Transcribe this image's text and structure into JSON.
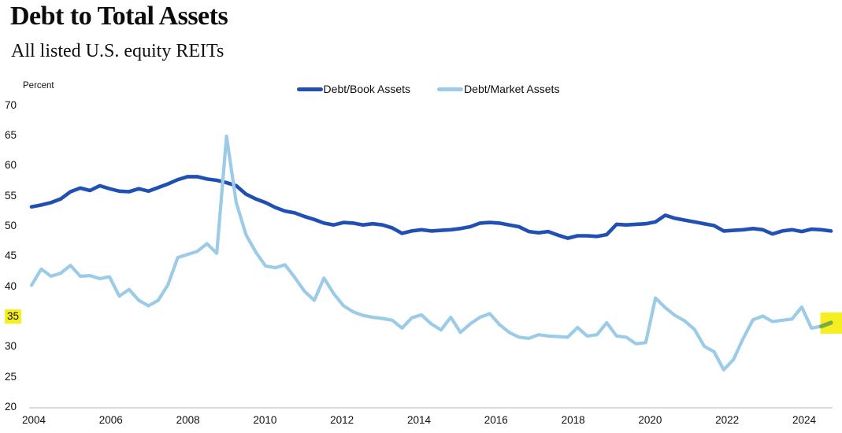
{
  "title": "Debt to Total Assets",
  "subtitle": "All listed U.S. equity REITs",
  "unit_label": "Percent",
  "legend": {
    "items": [
      {
        "label": "Debt/Book Assets",
        "color": "#2150b5"
      },
      {
        "label": "Debt/Market Assets",
        "color": "#9ccbe7"
      }
    ]
  },
  "colors": {
    "book_line": "#2150b5",
    "market_line": "#9ccbe7",
    "highlight_yellow": "#f5ee20",
    "highlight_segment": "#79ad43",
    "axis_baseline": "#c4c4c4",
    "text": "#111111"
  },
  "chart_data": {
    "type": "line",
    "title": "Debt to Total Assets",
    "subtitle": "All listed U.S. equity REITs",
    "ylabel": "Percent",
    "xlabel": "",
    "ylim": [
      20,
      70
    ],
    "yticks": [
      70,
      65,
      60,
      55,
      50,
      45,
      40,
      35,
      30,
      25,
      20
    ],
    "xticks": [
      2004,
      2006,
      2008,
      2010,
      2012,
      2014,
      2016,
      2018,
      2020,
      2022,
      2024
    ],
    "grid": false,
    "legend_position": "top-center",
    "x_start_year": 2004,
    "x_step_years": 0.25,
    "frequency": "quarterly",
    "highlight": {
      "y_tick_value": 35,
      "last_segment_highlighted": true,
      "last_value": 34.1
    },
    "series": [
      {
        "name": "Debt/Book Assets",
        "color": "#2150b5",
        "values": [
          53.3,
          53.6,
          54.0,
          54.6,
          55.8,
          56.4,
          56.0,
          56.8,
          56.3,
          55.9,
          55.8,
          56.3,
          55.9,
          56.5,
          57.1,
          57.8,
          58.3,
          58.3,
          57.9,
          57.7,
          57.3,
          56.8,
          55.4,
          54.6,
          54.0,
          53.2,
          52.6,
          52.3,
          51.7,
          51.2,
          50.6,
          50.3,
          50.7,
          50.6,
          50.3,
          50.5,
          50.3,
          49.8,
          48.9,
          49.3,
          49.5,
          49.3,
          49.4,
          49.5,
          49.7,
          50.0,
          50.6,
          50.7,
          50.6,
          50.3,
          50.0,
          49.2,
          49.0,
          49.2,
          48.6,
          48.1,
          48.5,
          48.5,
          48.4,
          48.7,
          50.4,
          50.3,
          50.4,
          50.5,
          50.8,
          51.9,
          51.4,
          51.1,
          50.8,
          50.5,
          50.2,
          49.3,
          49.4,
          49.5,
          49.7,
          49.5,
          48.8,
          49.3,
          49.5,
          49.2,
          49.6,
          49.5,
          49.3
        ]
      },
      {
        "name": "Debt/Market Assets",
        "color": "#9ccbe7",
        "values": [
          40.3,
          43.0,
          41.8,
          42.3,
          43.6,
          41.8,
          41.9,
          41.4,
          41.7,
          38.5,
          39.6,
          37.8,
          36.9,
          37.8,
          40.4,
          44.9,
          45.4,
          45.9,
          47.2,
          45.6,
          65.0,
          54.0,
          48.7,
          45.8,
          43.5,
          43.2,
          43.7,
          41.6,
          39.3,
          37.8,
          41.5,
          38.9,
          36.9,
          35.9,
          35.3,
          35.0,
          34.8,
          34.5,
          33.2,
          34.9,
          35.4,
          33.9,
          32.9,
          35.0,
          32.5,
          33.9,
          35.0,
          35.6,
          33.8,
          32.5,
          31.7,
          31.5,
          32.1,
          31.9,
          31.8,
          31.7,
          33.3,
          31.9,
          32.1,
          34.1,
          31.9,
          31.7,
          30.6,
          30.8,
          38.2,
          36.6,
          35.3,
          34.4,
          33.0,
          30.2,
          29.3,
          26.3,
          28.0,
          31.5,
          34.6,
          35.2,
          34.3,
          34.5,
          34.7,
          36.7,
          33.2,
          33.5,
          34.1
        ]
      }
    ]
  }
}
